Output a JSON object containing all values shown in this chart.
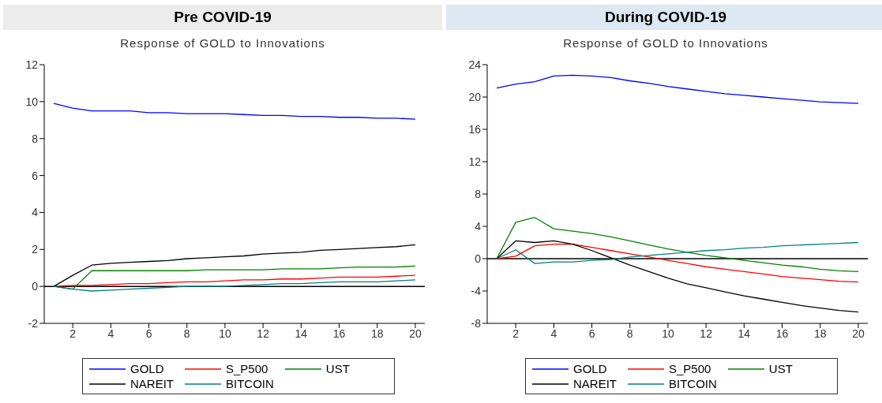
{
  "chart_data": [
    {
      "type": "line",
      "title": "Pre COVID-19",
      "subtitle": "Response of GOLD to Innovations",
      "x": [
        1,
        2,
        3,
        4,
        5,
        6,
        7,
        8,
        9,
        10,
        11,
        12,
        13,
        14,
        15,
        16,
        17,
        18,
        19,
        20
      ],
      "xlim": [
        0.5,
        20.5
      ],
      "xticks": [
        2,
        4,
        6,
        8,
        10,
        12,
        14,
        16,
        18,
        20
      ],
      "ylim": [
        -2,
        12
      ],
      "yticks": [
        -2,
        0,
        2,
        4,
        6,
        8,
        10,
        12
      ],
      "legend": "bottom",
      "grid": false,
      "ref_lines": [
        {
          "axis": "y",
          "value": 0,
          "color": "#000000"
        }
      ],
      "series": [
        {
          "name": "GOLD",
          "color": "#0000ff",
          "values": [
            9.9,
            9.65,
            9.5,
            9.5,
            9.5,
            9.4,
            9.4,
            9.35,
            9.35,
            9.35,
            9.3,
            9.25,
            9.25,
            9.2,
            9.2,
            9.15,
            9.15,
            9.1,
            9.1,
            9.05
          ]
        },
        {
          "name": "S_P500",
          "color": "#ff0000",
          "values": [
            0,
            0.05,
            0.05,
            0.1,
            0.15,
            0.15,
            0.2,
            0.25,
            0.25,
            0.3,
            0.35,
            0.35,
            0.4,
            0.4,
            0.45,
            0.5,
            0.5,
            0.5,
            0.55,
            0.6
          ]
        },
        {
          "name": "UST",
          "color": "#008000",
          "values": [
            0,
            -0.15,
            0.85,
            0.85,
            0.85,
            0.85,
            0.85,
            0.85,
            0.9,
            0.9,
            0.9,
            0.9,
            0.95,
            0.95,
            0.95,
            1.0,
            1.05,
            1.05,
            1.05,
            1.1
          ]
        },
        {
          "name": "NAREIT",
          "color": "#000000",
          "values": [
            0,
            0.6,
            1.15,
            1.25,
            1.3,
            1.35,
            1.4,
            1.5,
            1.55,
            1.6,
            1.65,
            1.75,
            1.8,
            1.85,
            1.95,
            2.0,
            2.05,
            2.1,
            2.15,
            2.25
          ]
        },
        {
          "name": "BITCOIN",
          "color": "#008080",
          "values": [
            0,
            -0.15,
            -0.25,
            -0.2,
            -0.15,
            -0.1,
            -0.05,
            0,
            0,
            0,
            0.05,
            0.1,
            0.15,
            0.15,
            0.2,
            0.25,
            0.25,
            0.25,
            0.3,
            0.35
          ]
        }
      ]
    },
    {
      "type": "line",
      "title": "During COVID-19",
      "subtitle": "Response of GOLD to Innovations",
      "x": [
        1,
        2,
        3,
        4,
        5,
        6,
        7,
        8,
        9,
        10,
        11,
        12,
        13,
        14,
        15,
        16,
        17,
        18,
        19,
        20
      ],
      "xlim": [
        0.5,
        20.5
      ],
      "xticks": [
        2,
        4,
        6,
        8,
        10,
        12,
        14,
        16,
        18,
        20
      ],
      "ylim": [
        -8,
        24
      ],
      "yticks": [
        -8,
        -4,
        0,
        4,
        8,
        12,
        16,
        20,
        24
      ],
      "legend": "bottom",
      "grid": false,
      "ref_lines": [
        {
          "axis": "y",
          "value": 0,
          "color": "#000000"
        }
      ],
      "series": [
        {
          "name": "GOLD",
          "color": "#0000ff",
          "values": [
            21.1,
            21.6,
            21.9,
            22.6,
            22.7,
            22.6,
            22.4,
            22.0,
            21.7,
            21.3,
            21.0,
            20.7,
            20.4,
            20.2,
            20.0,
            19.8,
            19.6,
            19.4,
            19.3,
            19.2
          ]
        },
        {
          "name": "S_P500",
          "color": "#ff0000",
          "values": [
            0,
            0.3,
            1.6,
            1.8,
            1.8,
            1.4,
            1.0,
            0.6,
            0.2,
            -0.2,
            -0.6,
            -1.0,
            -1.3,
            -1.6,
            -1.9,
            -2.2,
            -2.4,
            -2.6,
            -2.8,
            -2.9
          ]
        },
        {
          "name": "UST",
          "color": "#008000",
          "values": [
            0,
            4.5,
            5.1,
            3.7,
            3.4,
            3.1,
            2.7,
            2.2,
            1.7,
            1.2,
            0.8,
            0.4,
            0.1,
            -0.2,
            -0.5,
            -0.8,
            -1.0,
            -1.3,
            -1.5,
            -1.6
          ]
        },
        {
          "name": "NAREIT",
          "color": "#000000",
          "values": [
            0,
            2.2,
            2.0,
            2.2,
            1.8,
            1.0,
            0.1,
            -0.8,
            -1.6,
            -2.4,
            -3.1,
            -3.6,
            -4.1,
            -4.6,
            -5.0,
            -5.4,
            -5.8,
            -6.1,
            -6.4,
            -6.6
          ]
        },
        {
          "name": "BITCOIN",
          "color": "#008080",
          "values": [
            0,
            1.1,
            -0.6,
            -0.4,
            -0.4,
            -0.2,
            -0.1,
            0.2,
            0.4,
            0.6,
            0.8,
            1.0,
            1.1,
            1.3,
            1.4,
            1.6,
            1.7,
            1.8,
            1.9,
            2.0
          ]
        }
      ]
    }
  ]
}
